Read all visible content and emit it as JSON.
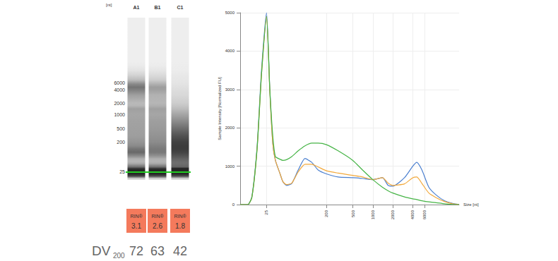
{
  "gel": {
    "size_unit": "[nt]",
    "ladder": [
      6000,
      4000,
      2000,
      1000,
      500,
      200,
      25
    ],
    "lanes": [
      "A1",
      "B1",
      "C1"
    ],
    "rin_label": "RIN®",
    "rin": [
      3.1,
      2.6,
      1.8
    ],
    "dv200_label": "DV",
    "dv200_subscript": "200",
    "dv200": [
      72,
      63,
      42
    ]
  },
  "chart_data": {
    "type": "line",
    "x_label": "Size [nt]",
    "y_label": "Sample Intensity [Normalized FU]",
    "x": [
      10,
      13,
      15,
      18,
      21,
      25,
      28,
      31,
      34,
      40,
      44,
      50,
      60,
      75,
      95,
      120,
      150,
      200,
      300,
      500,
      700,
      1000,
      1400,
      1700,
      2000,
      3000,
      4000,
      4600,
      5500,
      7000,
      9000,
      12000,
      16000,
      20000
    ],
    "series": [
      {
        "color": "#4a7fcf",
        "values": [
          0,
          0,
          200,
          1500,
          3500,
          5000,
          3000,
          1600,
          1150,
          800,
          600,
          500,
          550,
          900,
          1200,
          1100,
          900,
          800,
          720,
          700,
          680,
          650,
          700,
          500,
          480,
          700,
          1000,
          1100,
          900,
          450,
          250,
          100,
          30,
          0
        ]
      },
      {
        "color": "#f2a83a",
        "values": [
          0,
          0,
          180,
          1450,
          3400,
          4900,
          2950,
          1600,
          1150,
          800,
          600,
          520,
          560,
          850,
          1050,
          1050,
          980,
          880,
          820,
          760,
          720,
          650,
          700,
          560,
          500,
          540,
          700,
          720,
          550,
          300,
          180,
          80,
          20,
          0
        ]
      },
      {
        "color": "#46b446",
        "values": [
          0,
          0,
          180,
          1450,
          3400,
          4900,
          3000,
          1800,
          1250,
          1180,
          1150,
          1170,
          1250,
          1400,
          1530,
          1600,
          1600,
          1560,
          1400,
          1150,
          900,
          650,
          450,
          360,
          300,
          200,
          150,
          130,
          100,
          70,
          50,
          20,
          5,
          0
        ]
      }
    ],
    "xlim": [
      10,
      20000
    ],
    "xticks": [
      25,
      200,
      500,
      1000,
      2000,
      4000,
      6000
    ],
    "ylim": [
      0,
      5000
    ],
    "yticks": [
      0,
      1000,
      2000,
      3000,
      4000,
      5000
    ],
    "log": "x",
    "grid": true
  }
}
